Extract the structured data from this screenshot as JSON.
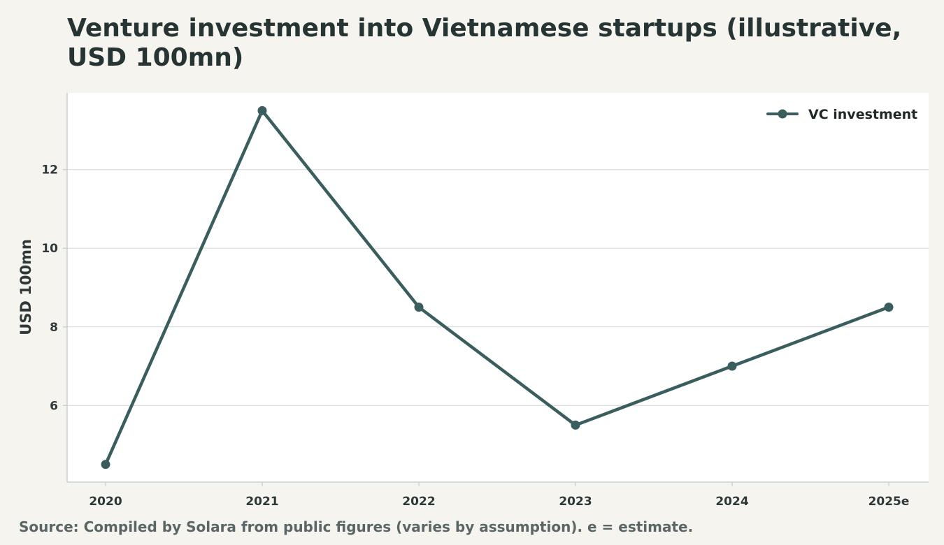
{
  "title": "Venture investment into Vietnamese startups (illustrative, USD 100mn)",
  "source": "Source: Compiled by Solara from public figures (varies by assumption). e = estimate.",
  "chart_data": {
    "type": "line",
    "title": "Venture investment into Vietnamese startups (illustrative, USD 100mn)",
    "xlabel": "",
    "ylabel": "USD 100mn",
    "categories": [
      "2020",
      "2021",
      "2022",
      "2023",
      "2024",
      "2025e"
    ],
    "series": [
      {
        "name": "VC investment",
        "values": [
          4.5,
          13.5,
          8.5,
          5.5,
          7.0,
          8.5
        ],
        "color": "#3a5e5e"
      }
    ],
    "yticks": [
      6,
      8,
      10,
      12
    ],
    "ylim": [
      4.05,
      13.95
    ],
    "grid": "horizontal",
    "legend": "top-right",
    "plot_background": "#ffffff",
    "page_background": "#f5f4ef"
  }
}
